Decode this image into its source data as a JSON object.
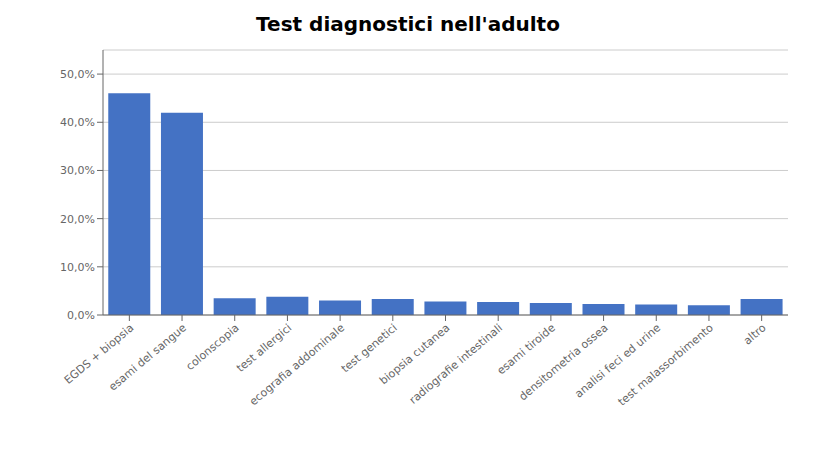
{
  "chart_data": {
    "type": "bar",
    "title": "Test diagnostici nell'adulto",
    "categories": [
      "EGDS + biopsia",
      "esami del sangue",
      "colonscopia",
      "test allergici",
      "ecografia addominale",
      "test genetici",
      "biopsia cutanea",
      "radiografie intestinali",
      "esami tiroide",
      "densitometria ossea",
      "analisi feci ed urine",
      "test malassorbimento",
      "altro"
    ],
    "values": [
      0.46,
      0.42,
      0.035,
      0.038,
      0.03,
      0.033,
      0.028,
      0.027,
      0.025,
      0.023,
      0.022,
      0.02,
      0.033
    ],
    "color": "#4472C4",
    "ylim": [
      0,
      0.55
    ],
    "yticks": [
      {
        "value": 0.0,
        "label": "0,0%"
      },
      {
        "value": 0.1,
        "label": "10,0%"
      },
      {
        "value": 0.2,
        "label": "20,0%"
      },
      {
        "value": 0.3,
        "label": "30,0%"
      },
      {
        "value": 0.4,
        "label": "40,0%"
      },
      {
        "value": 0.5,
        "label": "50,0%"
      }
    ],
    "grid": true
  }
}
